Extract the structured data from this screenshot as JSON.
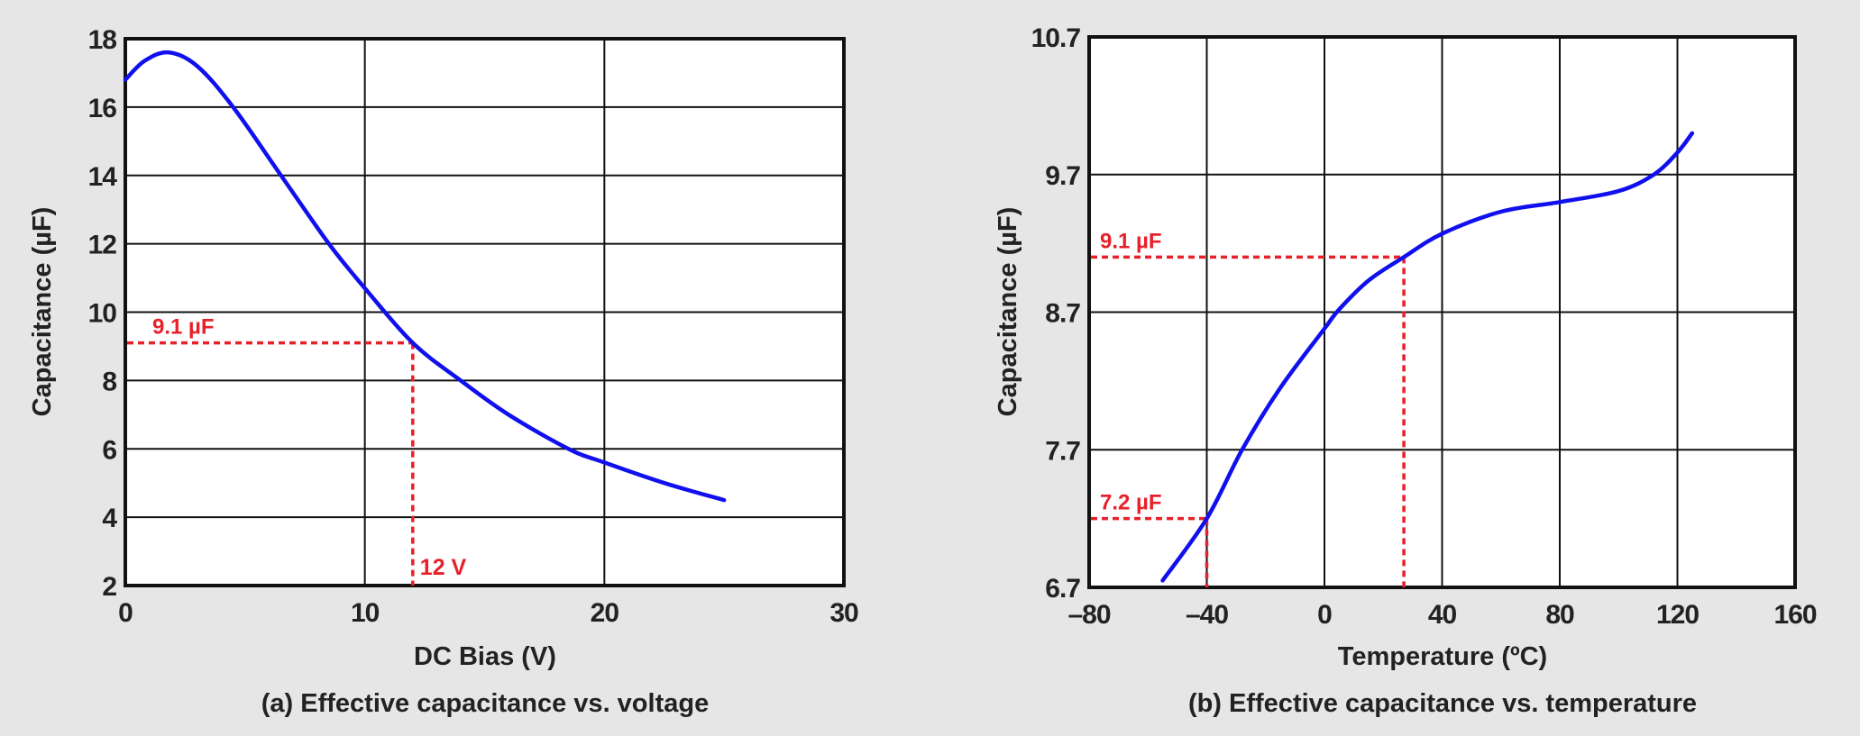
{
  "chart_data": [
    {
      "type": "line",
      "caption": "(a) Effective capacitance vs. voltage",
      "xlabel": "DC Bias (V)",
      "ylabel": "Capacitance (µF)",
      "xlim": [
        0,
        30
      ],
      "ylim": [
        2,
        18
      ],
      "xticks": [
        "0",
        "10",
        "20",
        "30"
      ],
      "yticks": [
        "2",
        "4",
        "6",
        "8",
        "10",
        "12",
        "14",
        "16",
        "18"
      ],
      "xtick_values": [
        0,
        10,
        20,
        30
      ],
      "ytick_values": [
        2,
        4,
        6,
        8,
        10,
        12,
        14,
        16,
        18
      ],
      "grid": true,
      "line_color": "#1010ee",
      "annotation_color": "#e8202a",
      "series": [
        {
          "x": [
            0,
            0.8,
            1.8,
            3,
            4.5,
            6.5,
            8.5,
            10,
            12,
            14,
            16,
            18.5,
            20,
            22.5,
            25
          ],
          "y": [
            16.8,
            17.35,
            17.6,
            17.2,
            16,
            14,
            12,
            10.7,
            9.1,
            8,
            7,
            6,
            5.6,
            5,
            4.5
          ]
        }
      ],
      "annotations": [
        {
          "label_y": "9.1 µF",
          "x": 12,
          "y": 9.1,
          "label_x": "12 V"
        }
      ]
    },
    {
      "type": "line",
      "caption": "(b) Effective capacitance vs. temperature",
      "xlabel": "Temperature (ºC)",
      "ylabel": "Capacitance (µF)",
      "xlim": [
        -80,
        160
      ],
      "ylim": [
        6.7,
        10.7
      ],
      "xticks": [
        "–80",
        "–40",
        "0",
        "40",
        "80",
        "120",
        "160"
      ],
      "yticks": [
        "6.7",
        "7.7",
        "8.7",
        "9.7",
        "10.7"
      ],
      "xtick_values": [
        -80,
        -40,
        0,
        40,
        80,
        120,
        160
      ],
      "ytick_values": [
        6.7,
        7.7,
        8.7,
        9.7,
        10.7
      ],
      "grid": true,
      "line_color": "#1010ee",
      "annotation_color": "#e8202a",
      "series": [
        {
          "x": [
            -55,
            -40,
            -28,
            -15,
            0,
            5,
            15,
            27,
            40,
            60,
            80,
            100,
            112,
            120,
            125
          ],
          "y": [
            6.75,
            7.2,
            7.7,
            8.15,
            8.58,
            8.72,
            8.93,
            9.1,
            9.27,
            9.43,
            9.5,
            9.58,
            9.7,
            9.86,
            10.0
          ]
        }
      ],
      "annotations": [
        {
          "label_y": "9.1 µF",
          "x": 27,
          "y": 9.1
        },
        {
          "label_y": "7.2 µF",
          "x": -40,
          "y": 7.2
        }
      ]
    }
  ]
}
